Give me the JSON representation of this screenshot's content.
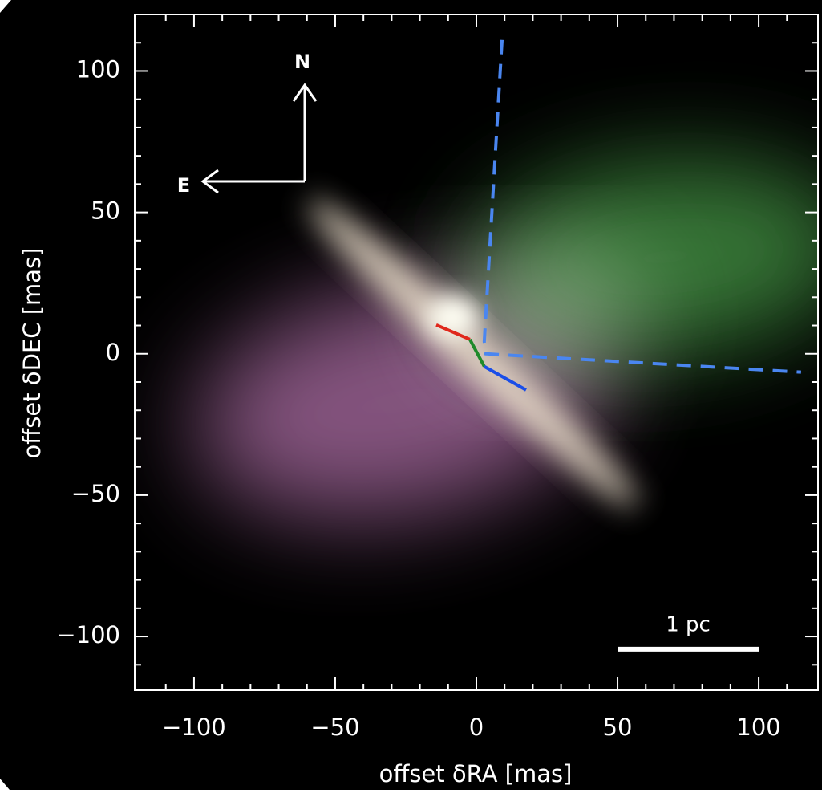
{
  "chart_data": {
    "type": "image",
    "xlabel": "offset δRA [mas]",
    "ylabel": "offset δDEC [mas]",
    "xlim": [
      -121,
      121
    ],
    "ylim": [
      -119,
      120
    ],
    "xticks": [
      {
        "value": -100,
        "label": "−100"
      },
      {
        "value": -50,
        "label": "−50"
      },
      0,
      50,
      100
    ],
    "yticks": [
      {
        "value": -100,
        "label": "−100"
      },
      {
        "value": -50,
        "label": "−50"
      },
      0,
      50,
      100
    ],
    "xminorticks": [
      -110,
      -90,
      -80,
      -70,
      -60,
      -40,
      -30,
      -20,
      -10,
      10,
      20,
      30,
      40,
      60,
      70,
      80,
      90,
      110
    ],
    "yminorticks": [
      -110,
      -90,
      -80,
      -70,
      -60,
      -40,
      -30,
      -20,
      -10,
      10,
      20,
      30,
      40,
      60,
      70,
      80,
      90,
      110
    ],
    "compass": {
      "north": "N",
      "east": "E"
    },
    "lines": [
      {
        "x": [
          9.1,
          2.8,
          3.4,
          115
        ],
        "y": [
          111,
          4.3,
          0,
          -6.5
        ],
        "color": "#4a86f0",
        "dashed": true
      },
      {
        "x": [
          -14.2,
          -2.3
        ],
        "y": [
          10.2,
          5.1
        ],
        "color": "#e0281c",
        "dashed": false
      },
      {
        "x": [
          -2.3,
          2.8
        ],
        "y": [
          5.1,
          -4.5
        ],
        "color": "#1f8a2a",
        "dashed": false
      },
      {
        "x": [
          2.8,
          17.6
        ],
        "y": [
          -4.5,
          -12.8
        ],
        "color": "#1a4ee8",
        "dashed": false
      }
    ],
    "scale_bar": {
      "label": "1 pc",
      "x": [
        50,
        100
      ],
      "y": -104.5
    }
  }
}
